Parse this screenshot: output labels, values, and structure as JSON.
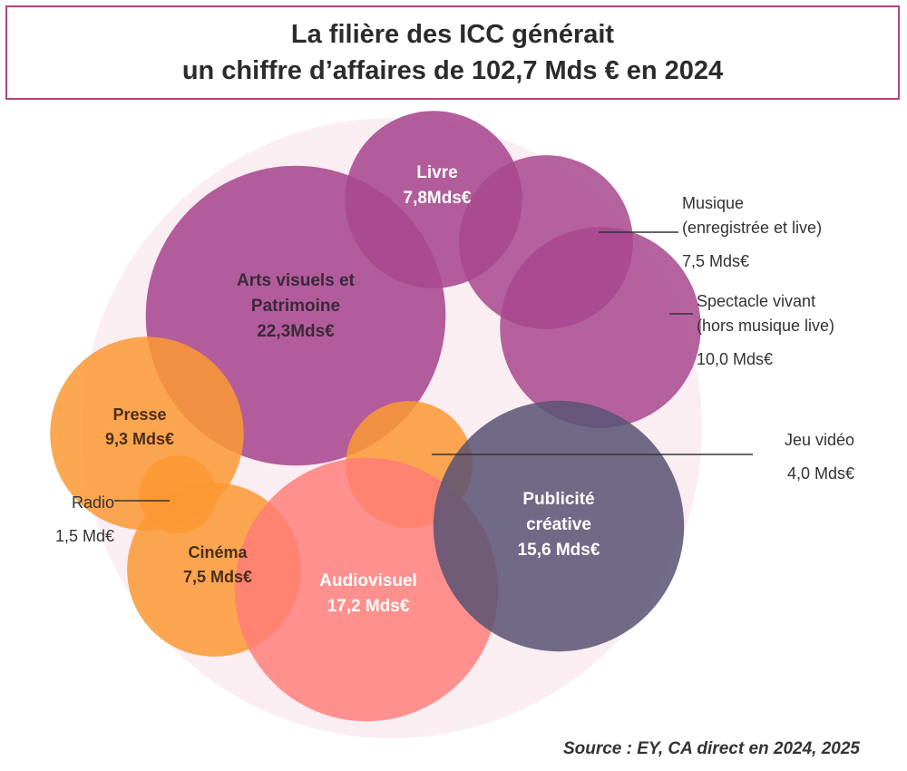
{
  "title": {
    "line1": "La filière des ICC générait",
    "line2": "un chiffre d’affaires de 102,7 Mds € en 2024"
  },
  "source": "Source : EY, CA direct en 2024, 2025",
  "chart_data": {
    "type": "bubble",
    "title": "La filière des ICC générait un chiffre d’affaires de 102,7 Mds € en 2024",
    "unit": "Mds €",
    "total": 102.7,
    "series": [
      {
        "key": "arts",
        "name": "Arts visuels et Patrimoine",
        "lines": [
          "Arts visuels et",
          "Patrimoine"
        ],
        "value": 22.3,
        "value_label": "22,3Mds€",
        "color": "#a8488e"
      },
      {
        "key": "livre",
        "name": "Livre",
        "lines": [
          "Livre"
        ],
        "value": 7.8,
        "value_label": "7,8Mds€",
        "color": "#a8488e"
      },
      {
        "key": "musique",
        "name": "Musique (enregistrée et live)",
        "lines": [
          "Musique",
          "(enregistrée et live)"
        ],
        "value": 7.5,
        "value_label": "7,5 Mds€",
        "color": "#a8488e"
      },
      {
        "key": "spectacle",
        "name": "Spectacle vivant (hors musique live)",
        "lines": [
          "Spectacle vivant",
          "(hors musique live)"
        ],
        "value": 10.0,
        "value_label": "10,0 Mds€",
        "color": "#a8488e"
      },
      {
        "key": "presse",
        "name": "Presse",
        "lines": [
          "Presse"
        ],
        "value": 9.3,
        "value_label": "9,3 Mds€",
        "color": "#fb9832"
      },
      {
        "key": "radio",
        "name": "Radio",
        "lines": [
          "Radio"
        ],
        "value": 1.5,
        "value_label": "1,5 Md€",
        "color": "#fb9832"
      },
      {
        "key": "jeu",
        "name": "Jeu vidéo",
        "lines": [
          "Jeu vidéo"
        ],
        "value": 4.0,
        "value_label": "4,0 Mds€",
        "color": "#fb9832"
      },
      {
        "key": "cinema",
        "name": "Cinéma",
        "lines": [
          "Cinéma"
        ],
        "value": 7.5,
        "value_label": "7,5 Mds€",
        "color": "#fb9832"
      },
      {
        "key": "audiovisuel",
        "name": "Audiovisuel",
        "lines": [
          "Audiovisuel"
        ],
        "value": 17.2,
        "value_label": "17,2 Mds€",
        "color": "#ff7b78"
      },
      {
        "key": "publicite",
        "name": "Publicité créative",
        "lines": [
          "Publicité",
          "créative"
        ],
        "value": 15.6,
        "value_label": "15,6 Mds€",
        "color": "#5a5473"
      }
    ]
  }
}
